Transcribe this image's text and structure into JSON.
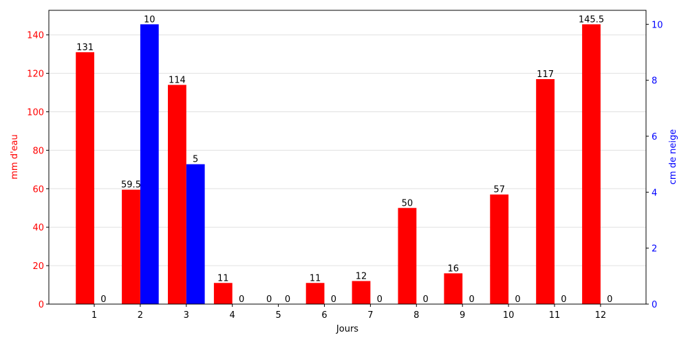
{
  "chart_data": {
    "type": "bar",
    "title": "",
    "xlabel": "Jours",
    "categories": [
      "1",
      "2",
      "3",
      "4",
      "5",
      "6",
      "7",
      "8",
      "9",
      "10",
      "11",
      "12"
    ],
    "series": [
      {
        "name": "",
        "axis": "left",
        "color": "#ff0000",
        "values": [
          131,
          59.5,
          114,
          11,
          0,
          11,
          12,
          50,
          16,
          57,
          117,
          145.5
        ],
        "labels": [
          "131",
          "59.5",
          "114",
          "11",
          "0",
          "11",
          "12",
          "50",
          "16",
          "57",
          "117",
          "145.5"
        ]
      },
      {
        "name": "",
        "axis": "right",
        "color": "#0000ff",
        "values": [
          0,
          10,
          5,
          0,
          0,
          0,
          0,
          0,
          0,
          0,
          0,
          0
        ],
        "labels": [
          "0",
          "10",
          "5",
          "0",
          "0",
          "0",
          "0",
          "0",
          "0",
          "0",
          "0",
          "0"
        ]
      }
    ],
    "y_left": {
      "label": "mm d'eau",
      "color": "#ff0000",
      "ylim": [
        0,
        152.775
      ],
      "ticks": [
        0,
        20,
        40,
        60,
        80,
        100,
        120,
        140
      ]
    },
    "y_right": {
      "label": "cm de neige",
      "color": "#0000ff",
      "ylim": [
        0,
        10.5
      ],
      "ticks": [
        0,
        2,
        4,
        6,
        8,
        10
      ]
    },
    "grid": "horizontal"
  }
}
